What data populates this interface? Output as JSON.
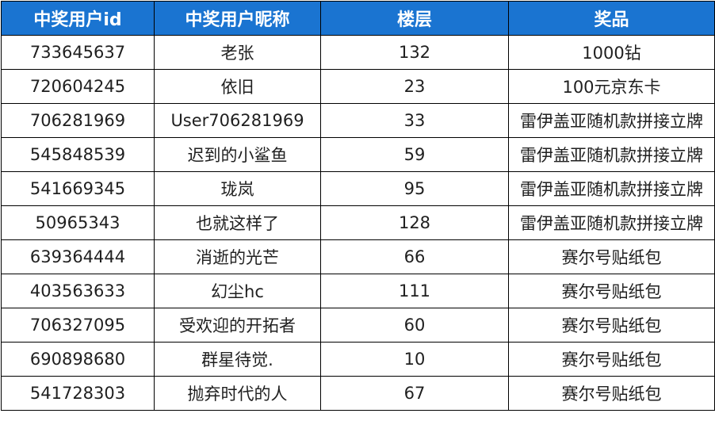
{
  "colors": {
    "header_background": "#1a74d1",
    "header_text": "#ffffff",
    "border": "#000000",
    "cell_text": "#1f1f1f"
  },
  "table": {
    "headers": [
      "中奖用户id",
      "中奖用户昵称",
      "楼层",
      "奖品"
    ],
    "rows": [
      [
        "733645637",
        "老张",
        "132",
        "1000钻"
      ],
      [
        "720604245",
        "依旧",
        "23",
        "100元京东卡"
      ],
      [
        "706281969",
        "User706281969",
        "33",
        "雷伊盖亚随机款拼接立牌"
      ],
      [
        "545848539",
        "迟到的小鲨鱼",
        "59",
        "雷伊盖亚随机款拼接立牌"
      ],
      [
        "541669345",
        "珑岚",
        "95",
        "雷伊盖亚随机款拼接立牌"
      ],
      [
        "50965343",
        "也就这样了",
        "128",
        "雷伊盖亚随机款拼接立牌"
      ],
      [
        "639364444",
        "消逝的光芒",
        "66",
        "赛尔号贴纸包"
      ],
      [
        "403563633",
        "幻尘hc",
        "111",
        "赛尔号贴纸包"
      ],
      [
        "706327095",
        "受欢迎的开拓者",
        "60",
        "赛尔号贴纸包"
      ],
      [
        "690898680",
        "群星待觉.",
        "10",
        "赛尔号贴纸包"
      ],
      [
        "541728303",
        "抛弃时代的人",
        "67",
        "赛尔号贴纸包"
      ]
    ]
  }
}
